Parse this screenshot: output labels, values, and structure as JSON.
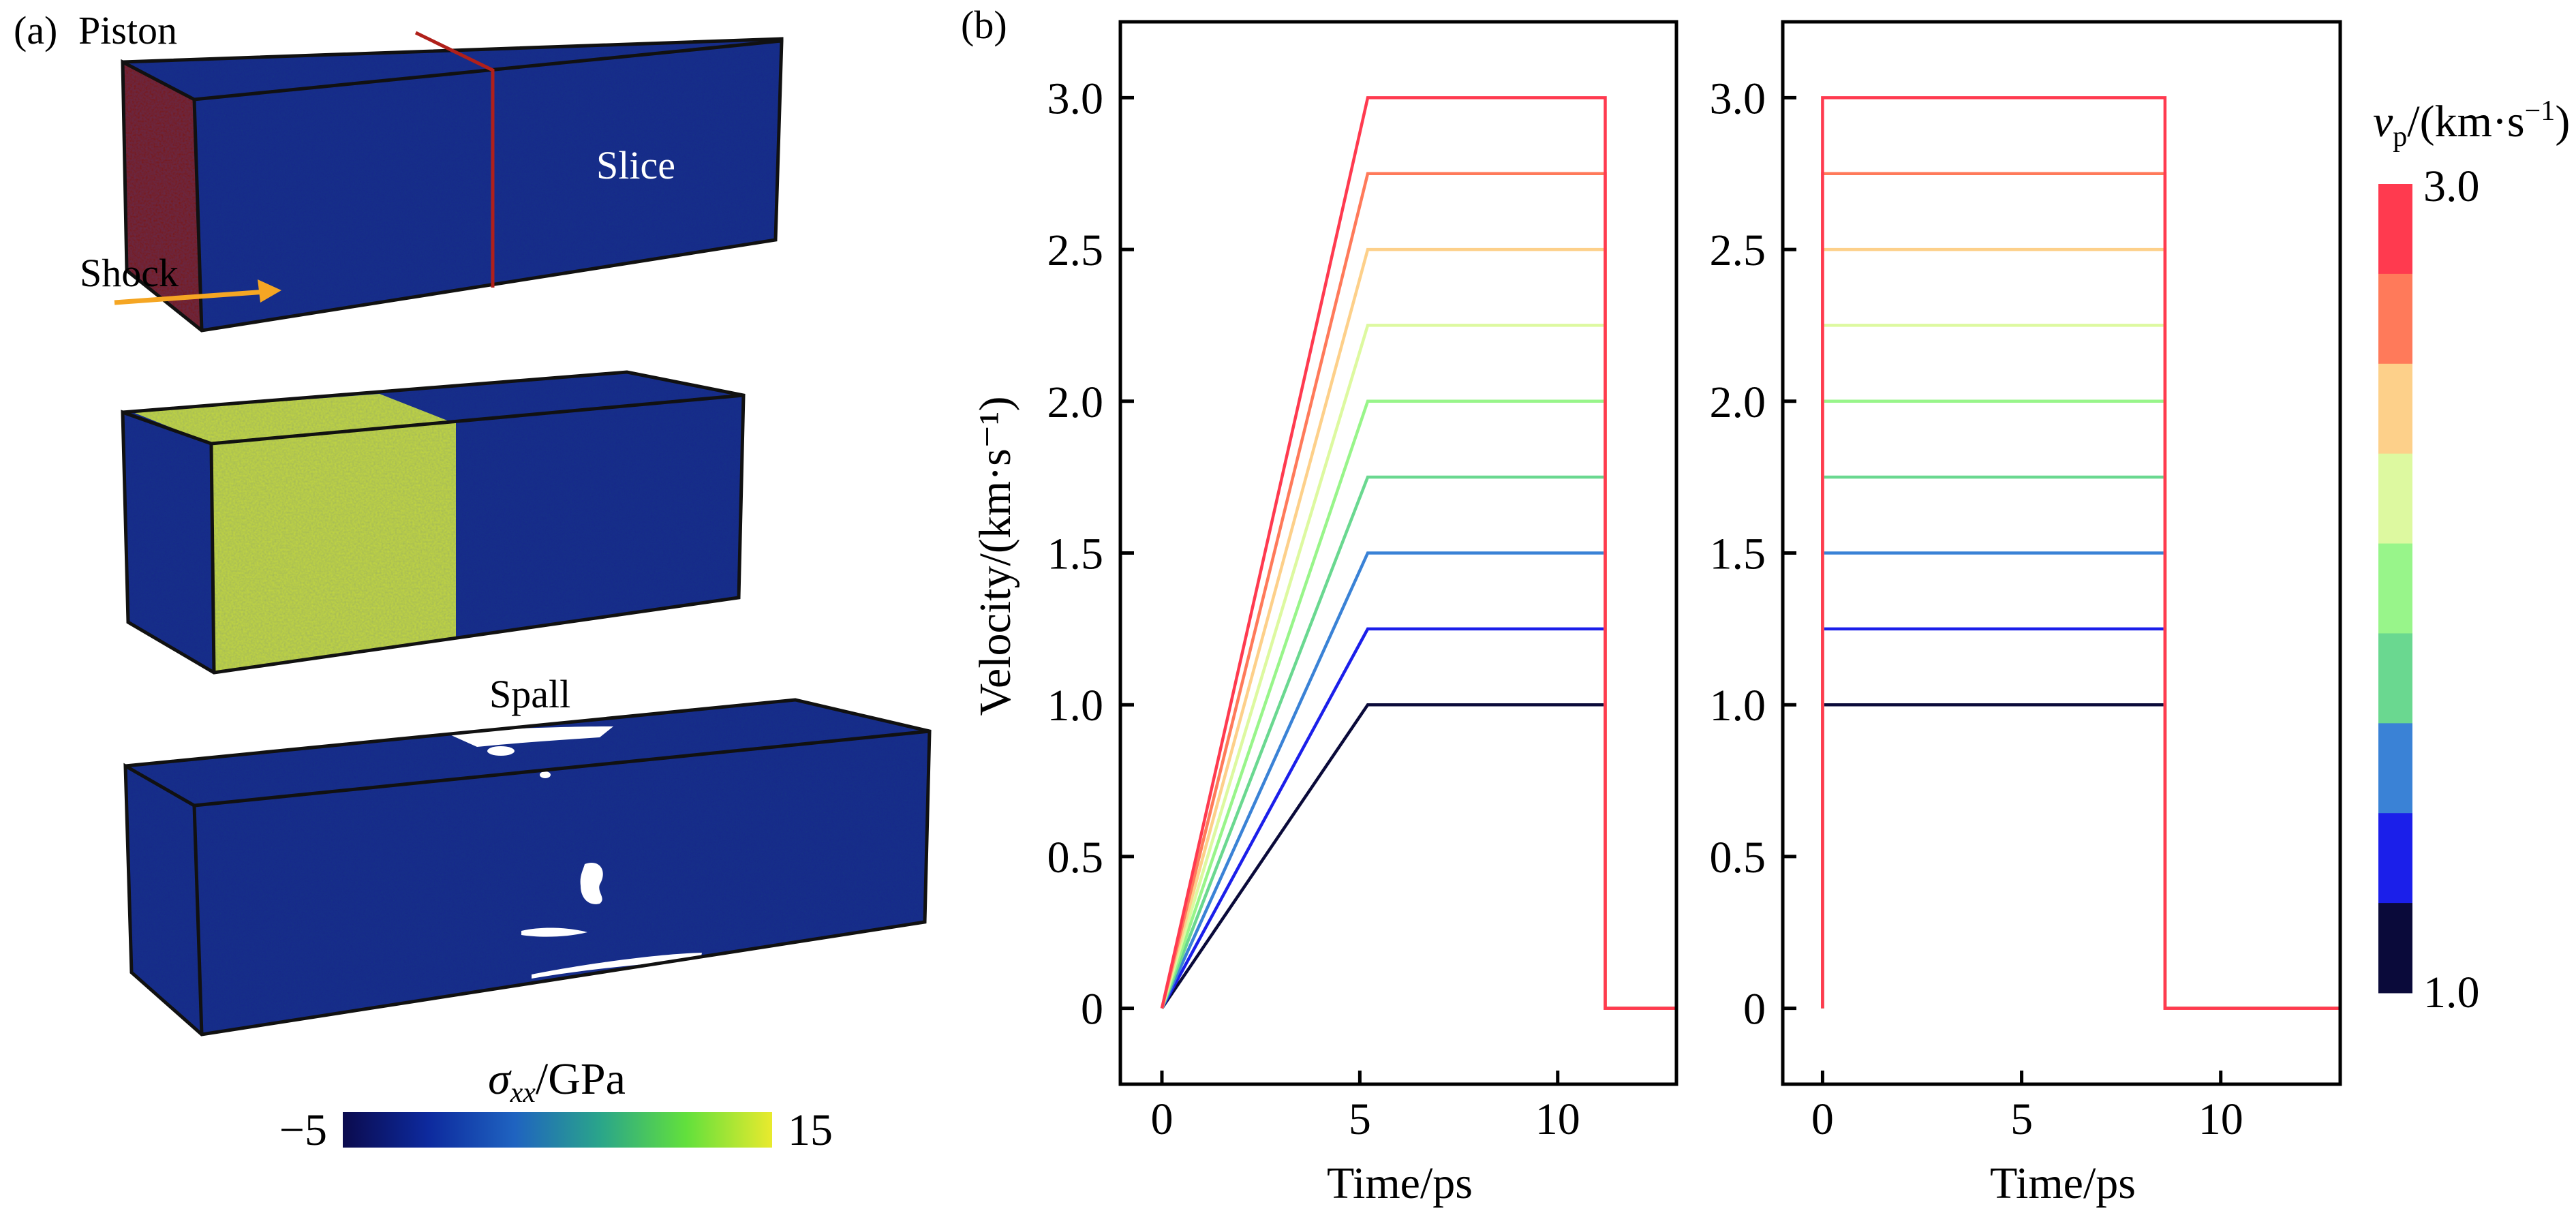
{
  "panel_a": {
    "label": "(a)",
    "piston_label": "Piston",
    "slice_label": "Slice",
    "shock_label": "Shock",
    "spall_label": "Spall",
    "colorbar": {
      "symbol": "σ",
      "subscript": "xx",
      "unit": "/GPa",
      "min_label": "−5",
      "max_label": "15",
      "range": [
        -5,
        15
      ],
      "colors": [
        "#0b0b4e",
        "#0d2a9e",
        "#1f63c0",
        "#2aa58a",
        "#62e03c",
        "#e9ea2e"
      ]
    },
    "colors": {
      "material": "#1c2a8c",
      "piston": "#7a1a0c",
      "slice_line": "#b0201a",
      "shocked": "#c4d93c",
      "shock_arrow": "#f5a623",
      "spall_void": "#ffffff"
    }
  },
  "panel_b": {
    "label": "(b)"
  },
  "chart_data": [
    {
      "type": "line",
      "xlabel": "Time/ps",
      "ylabel": "Velocity/(km·s⁻¹)",
      "xlim": [
        -1.05,
        13.0
      ],
      "ylim": [
        -0.25,
        3.25
      ],
      "xticks": [
        0,
        5,
        10
      ],
      "xtick_labels": [
        "0",
        "5",
        "10"
      ],
      "yticks": [
        0,
        0.5,
        1.0,
        1.5,
        2.0,
        2.5,
        3.0
      ],
      "ytick_labels": [
        "0",
        "0.5",
        "1.0",
        "1.5",
        "2.0",
        "2.5",
        "3.0"
      ],
      "grid": false,
      "series": [
        {
          "vp": 1.0,
          "color": "#0a0a3a",
          "x": [
            0,
            5.2,
            11.2,
            11.2,
            13
          ],
          "y": [
            0,
            1.0,
            1.0,
            0,
            0
          ]
        },
        {
          "vp": 1.25,
          "color": "#1b1fea",
          "x": [
            0,
            5.2,
            11.2,
            11.2,
            13
          ],
          "y": [
            0,
            1.25,
            1.25,
            0,
            0
          ]
        },
        {
          "vp": 1.5,
          "color": "#3a82d6",
          "x": [
            0,
            5.2,
            11.2,
            11.2,
            13
          ],
          "y": [
            0,
            1.5,
            1.5,
            0,
            0
          ]
        },
        {
          "vp": 1.75,
          "color": "#6ad890",
          "x": [
            0,
            5.2,
            11.2,
            11.2,
            13
          ],
          "y": [
            0,
            1.75,
            1.75,
            0,
            0
          ]
        },
        {
          "vp": 2.0,
          "color": "#98f58a",
          "x": [
            0,
            5.2,
            11.2,
            11.2,
            13
          ],
          "y": [
            0,
            2.0,
            2.0,
            0,
            0
          ]
        },
        {
          "vp": 2.25,
          "color": "#ddf9a0",
          "x": [
            0,
            5.2,
            11.2,
            11.2,
            13
          ],
          "y": [
            0,
            2.25,
            2.25,
            0,
            0
          ]
        },
        {
          "vp": 2.5,
          "color": "#fdd08a",
          "x": [
            0,
            5.2,
            11.2,
            11.2,
            13
          ],
          "y": [
            0,
            2.5,
            2.5,
            0,
            0
          ]
        },
        {
          "vp": 2.75,
          "color": "#ff7a5a",
          "x": [
            0,
            5.2,
            11.2,
            11.2,
            13
          ],
          "y": [
            0,
            2.75,
            2.75,
            0,
            0
          ]
        },
        {
          "vp": 3.0,
          "color": "#ff3a4f",
          "x": [
            0,
            5.2,
            11.2,
            11.2,
            13
          ],
          "y": [
            0,
            3.0,
            3.0,
            0,
            0
          ]
        }
      ]
    },
    {
      "type": "line",
      "xlabel": "Time/ps",
      "xlim": [
        -1.0,
        13.0
      ],
      "ylim": [
        -0.25,
        3.25
      ],
      "xticks": [
        0,
        5,
        10
      ],
      "xtick_labels": [
        "0",
        "5",
        "10"
      ],
      "yticks": [
        0,
        0.5,
        1.0,
        1.5,
        2.0,
        2.5,
        3.0
      ],
      "ytick_labels": [
        "0",
        "0.5",
        "1.0",
        "1.5",
        "2.0",
        "2.5",
        "3.0"
      ],
      "grid": false,
      "series": [
        {
          "vp": 1.0,
          "color": "#0a0a3a",
          "x": [
            0,
            0,
            8.6,
            8.6,
            13
          ],
          "y": [
            0,
            1.0,
            1.0,
            0,
            0
          ]
        },
        {
          "vp": 1.25,
          "color": "#1b1fea",
          "x": [
            0,
            0,
            8.6,
            8.6,
            13
          ],
          "y": [
            0,
            1.25,
            1.25,
            0,
            0
          ]
        },
        {
          "vp": 1.5,
          "color": "#3a82d6",
          "x": [
            0,
            0,
            8.6,
            8.6,
            13
          ],
          "y": [
            0,
            1.5,
            1.5,
            0,
            0
          ]
        },
        {
          "vp": 1.75,
          "color": "#6ad890",
          "x": [
            0,
            0,
            8.6,
            8.6,
            13
          ],
          "y": [
            0,
            1.75,
            1.75,
            0,
            0
          ]
        },
        {
          "vp": 2.0,
          "color": "#98f58a",
          "x": [
            0,
            0,
            8.6,
            8.6,
            13
          ],
          "y": [
            0,
            2.0,
            2.0,
            0,
            0
          ]
        },
        {
          "vp": 2.25,
          "color": "#ddf9a0",
          "x": [
            0,
            0,
            8.6,
            8.6,
            13
          ],
          "y": [
            0,
            2.25,
            2.25,
            0,
            0
          ]
        },
        {
          "vp": 2.5,
          "color": "#fdd08a",
          "x": [
            0,
            0,
            8.6,
            8.6,
            13
          ],
          "y": [
            0,
            2.5,
            2.5,
            0,
            0
          ]
        },
        {
          "vp": 2.75,
          "color": "#ff7a5a",
          "x": [
            0,
            0,
            8.6,
            8.6,
            13
          ],
          "y": [
            0,
            2.75,
            2.75,
            0,
            0
          ]
        },
        {
          "vp": 3.0,
          "color": "#ff3a4f",
          "x": [
            0,
            0,
            8.6,
            8.6,
            13
          ],
          "y": [
            0,
            3.0,
            3.0,
            0,
            0
          ]
        }
      ]
    }
  ],
  "legend": {
    "symbol": "v",
    "subscript": "p",
    "unit_open": "/(km·s",
    "superscript": "−1",
    "unit_close": ")",
    "max_label": "3.0",
    "min_label": "1.0",
    "placement": "right",
    "colors": [
      "#ff3a4f",
      "#ff7a5a",
      "#fdd08a",
      "#ddf9a0",
      "#98f58a",
      "#6ad890",
      "#3a82d6",
      "#1b1fea",
      "#0a0a3a"
    ]
  }
}
